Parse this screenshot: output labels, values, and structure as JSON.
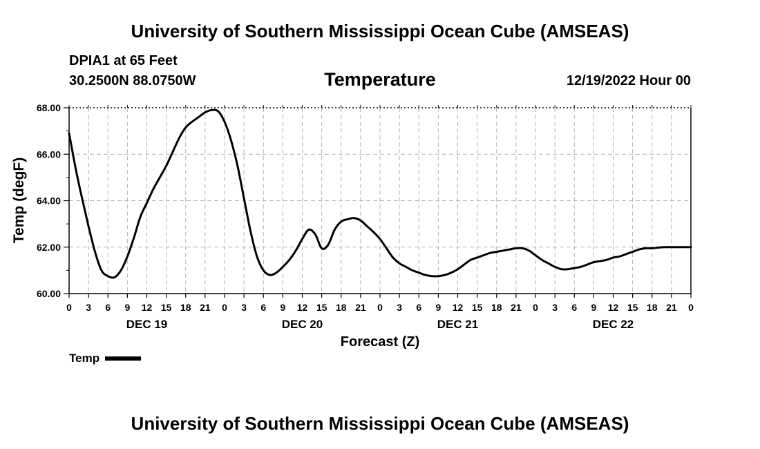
{
  "header": {
    "title": "University of Southern Mississippi Ocean Cube (AMSEAS)",
    "station": "DPIA1 at 65 Feet",
    "coordinates": "30.2500N  88.0750W",
    "variable": "Temperature",
    "datetime": "12/19/2022 Hour 00"
  },
  "footer": {
    "title": "University of Southern Mississippi Ocean Cube (AMSEAS)"
  },
  "legend": {
    "label": "Temp"
  },
  "chart_data": {
    "type": "line",
    "title": "Temperature",
    "xlabel": "Forecast (Z)",
    "ylabel": "Temp (degF)",
    "xlim": [
      0,
      96
    ],
    "ylim": [
      60,
      68
    ],
    "grid": true,
    "legend_position": "bottom-left",
    "y_ticks": [
      60,
      62,
      64,
      66,
      68
    ],
    "y_tick_labels": [
      "60.00",
      "62.00",
      "64.00",
      "66.00",
      "68.00"
    ],
    "x_ticks": [
      0,
      3,
      6,
      9,
      12,
      15,
      18,
      21,
      24,
      27,
      30,
      33,
      36,
      39,
      42,
      45,
      48,
      51,
      54,
      57,
      60,
      63,
      66,
      69,
      72,
      75,
      78,
      81,
      84,
      87,
      90,
      93,
      96
    ],
    "x_tick_labels": [
      "0",
      "3",
      "6",
      "9",
      "12",
      "15",
      "18",
      "21",
      "0",
      "3",
      "6",
      "9",
      "12",
      "15",
      "18",
      "21",
      "0",
      "3",
      "6",
      "9",
      "12",
      "15",
      "18",
      "21",
      "0",
      "3",
      "6",
      "9",
      "12",
      "15",
      "18",
      "21",
      "0"
    ],
    "day_labels": [
      {
        "x": 12,
        "label": "DEC 19"
      },
      {
        "x": 36,
        "label": "DEC 20"
      },
      {
        "x": 60,
        "label": "DEC 21"
      },
      {
        "x": 84,
        "label": "DEC 22"
      }
    ],
    "series": [
      {
        "name": "Temp",
        "x": [
          0,
          1,
          2,
          3,
          4,
          5,
          6,
          7,
          8,
          9,
          10,
          11,
          12,
          13,
          14,
          15,
          16,
          17,
          18,
          19,
          20,
          21,
          22,
          23,
          24,
          25,
          26,
          27,
          28,
          29,
          30,
          31,
          32,
          33,
          34,
          35,
          36,
          37,
          38,
          39,
          40,
          41,
          42,
          43,
          44,
          45,
          46,
          47,
          48,
          49,
          50,
          51,
          52,
          53,
          54,
          55,
          56,
          57,
          58,
          59,
          60,
          61,
          62,
          63,
          64,
          65,
          66,
          67,
          68,
          69,
          70,
          71,
          72,
          73,
          74,
          75,
          76,
          77,
          78,
          79,
          80,
          81,
          82,
          83,
          84,
          85,
          86,
          87,
          88,
          89,
          90,
          91,
          92,
          93,
          94,
          95,
          96
        ],
        "values": [
          66.9,
          65.4,
          64.1,
          62.9,
          61.8,
          61.0,
          60.75,
          60.7,
          61.0,
          61.6,
          62.4,
          63.3,
          63.9,
          64.5,
          65.0,
          65.5,
          66.1,
          66.7,
          67.15,
          67.4,
          67.6,
          67.8,
          67.9,
          67.85,
          67.4,
          66.6,
          65.5,
          64.1,
          62.7,
          61.6,
          61.0,
          60.8,
          60.9,
          61.15,
          61.45,
          61.85,
          62.35,
          62.75,
          62.55,
          61.95,
          62.1,
          62.75,
          63.1,
          63.2,
          63.25,
          63.15,
          62.9,
          62.65,
          62.35,
          61.95,
          61.55,
          61.3,
          61.15,
          61.0,
          60.9,
          60.8,
          60.75,
          60.75,
          60.8,
          60.9,
          61.05,
          61.25,
          61.45,
          61.55,
          61.65,
          61.75,
          61.8,
          61.85,
          61.9,
          61.95,
          61.95,
          61.85,
          61.65,
          61.45,
          61.3,
          61.15,
          61.05,
          61.05,
          61.1,
          61.15,
          61.25,
          61.35,
          61.4,
          61.45,
          61.55,
          61.6,
          61.7,
          61.8,
          61.9,
          61.95,
          61.95,
          61.98,
          62.0,
          62.0,
          62.0,
          62.0,
          62.0
        ]
      }
    ]
  }
}
